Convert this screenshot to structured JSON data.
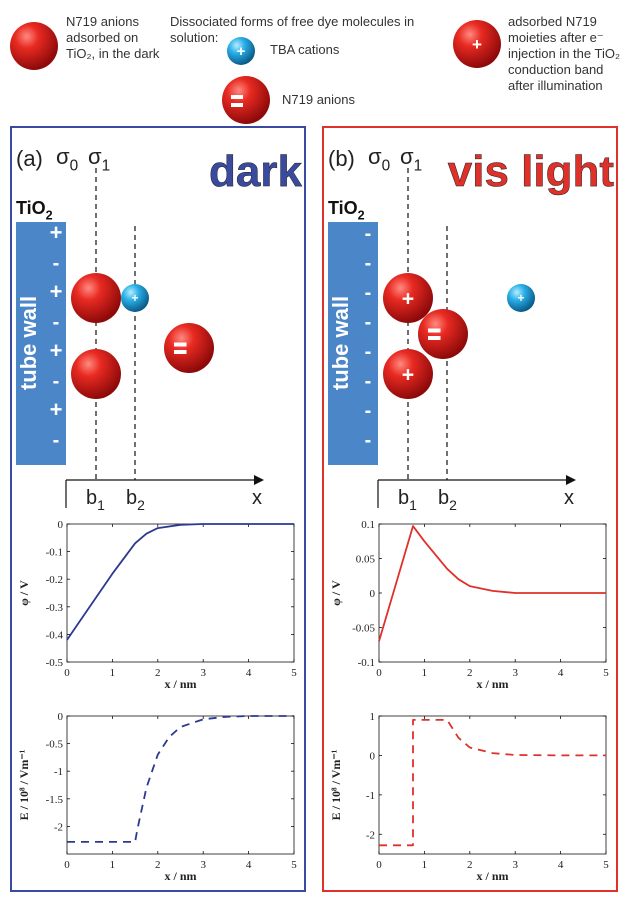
{
  "legend": {
    "item1": "N719 anions adsorbed on TiO₂, in the dark",
    "heading": "Dissociated forms of free dye molecules in solution:",
    "tba": "TBA cations",
    "n719": "N719 anions",
    "item3": "adsorbed N719 moieties after e⁻ injection in the TiO₂ conduction band after illumination"
  },
  "colors": {
    "dark_panel": "#3a4aa0",
    "light_panel": "#e0302a",
    "wall": "#4a86c8",
    "sphere_red": "#e02020",
    "sphere_blue": "#2aa8e0"
  },
  "panels": [
    {
      "letter": "(a)",
      "title": "dark",
      "sigma0": "σ0",
      "sigma1": "σ1",
      "tio2": "TiO2",
      "wall_label": "tube wall",
      "wall_signs": [
        "+",
        "-",
        "+",
        "-",
        "+",
        "-",
        "+",
        "-"
      ],
      "b1": "b1",
      "b2": "b2",
      "x": "x"
    },
    {
      "letter": "(b)",
      "title": "vis light",
      "sigma0": "σ0",
      "sigma1": "σ1",
      "tio2": "TiO2",
      "wall_label": "tube wall",
      "wall_signs": [
        "-",
        "-",
        "-",
        "-",
        "-",
        "-",
        "-",
        "-"
      ],
      "b1": "b1",
      "b2": "b2",
      "x": "x"
    }
  ],
  "chart_data": [
    {
      "type": "line",
      "panel": "a",
      "xlabel": "x / nm",
      "ylabel": "φ / V",
      "xlim": [
        0,
        5
      ],
      "ylim": [
        -0.5,
        0
      ],
      "xticks": [
        0,
        1,
        2,
        3,
        4,
        5
      ],
      "yticks": [
        0,
        -0.1,
        -0.2,
        -0.3,
        -0.4,
        -0.5
      ],
      "ytick_labels": [
        "0",
        "-0.1",
        "-0.2",
        "-0.3",
        "-0.4",
        "-0.5"
      ],
      "series": [
        {
          "style": "solid",
          "color": "#2b3a90",
          "x": [
            0,
            0.5,
            1.0,
            1.5,
            1.75,
            2.0,
            2.5,
            3.0,
            4.0,
            5.0
          ],
          "y": [
            -0.42,
            -0.3,
            -0.18,
            -0.07,
            -0.035,
            -0.015,
            -0.003,
            0,
            0,
            0
          ]
        }
      ]
    },
    {
      "type": "line",
      "panel": "b",
      "xlabel": "x / nm",
      "ylabel": "φ / V",
      "xlim": [
        0,
        5
      ],
      "ylim": [
        -0.1,
        0.1
      ],
      "xticks": [
        0,
        1,
        2,
        3,
        4,
        5
      ],
      "yticks": [
        0.1,
        0.05,
        0,
        -0.05,
        -0.1
      ],
      "ytick_labels": [
        "0.1",
        "0.05",
        "0",
        "-0.05",
        "-0.1"
      ],
      "series": [
        {
          "style": "solid",
          "color": "#e0302a",
          "x": [
            0,
            0.75,
            1.0,
            1.5,
            1.75,
            2.0,
            2.5,
            3.0,
            4.0,
            5.0
          ],
          "y": [
            -0.07,
            0.097,
            0.075,
            0.035,
            0.02,
            0.01,
            0.003,
            0,
            0,
            0
          ]
        }
      ]
    },
    {
      "type": "line",
      "panel": "a",
      "xlabel": "x / nm",
      "ylabel": "E / 10⁸ / Vm⁻¹",
      "xlim": [
        0,
        5
      ],
      "ylim": [
        -2.5,
        0
      ],
      "xticks": [
        0,
        1,
        2,
        3,
        4,
        5
      ],
      "yticks": [
        0,
        -0.5,
        -1,
        -1.5,
        -2
      ],
      "ytick_labels": [
        "0",
        "-0.5",
        "-1",
        "-1.5",
        "-2"
      ],
      "series": [
        {
          "style": "dashed",
          "color": "#2b3a90",
          "x": [
            0,
            1.5,
            1.55,
            1.75,
            2.0,
            2.25,
            2.5,
            3.0,
            3.5,
            4.0,
            5.0
          ],
          "y": [
            -2.28,
            -2.28,
            -2.05,
            -1.3,
            -0.7,
            -0.38,
            -0.2,
            -0.06,
            -0.015,
            0,
            0
          ]
        }
      ]
    },
    {
      "type": "line",
      "panel": "b",
      "xlabel": "x / nm",
      "ylabel": "E / 10⁸ / Vm⁻¹",
      "xlim": [
        0,
        5
      ],
      "ylim": [
        -2.5,
        1
      ],
      "xticks": [
        0,
        1,
        2,
        3,
        4,
        5
      ],
      "yticks": [
        1,
        0,
        -1,
        -2
      ],
      "ytick_labels": [
        "1",
        "0",
        "-1",
        "-2"
      ],
      "series": [
        {
          "style": "dashed",
          "color": "#e0302a",
          "x": [
            0,
            0.75,
            0.75,
            1.5,
            1.75,
            2.0,
            2.5,
            3.0,
            4.0,
            5.0
          ],
          "y": [
            -2.28,
            -2.28,
            0.9,
            0.9,
            0.45,
            0.2,
            0.06,
            0.01,
            0,
            0
          ]
        }
      ]
    }
  ]
}
